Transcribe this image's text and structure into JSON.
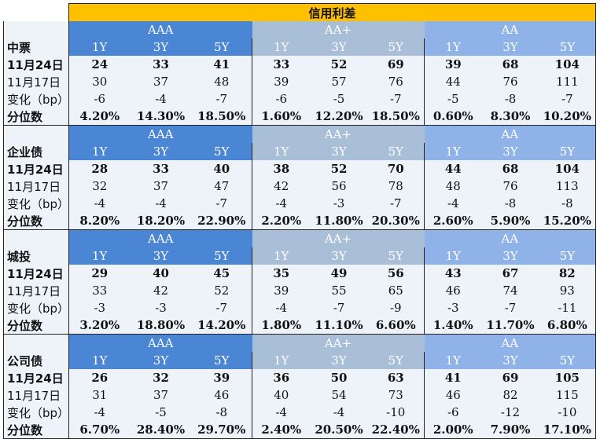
{
  "title": "信用利差",
  "tenors": [
    "1Y",
    "3Y",
    "5Y"
  ],
  "groups": [
    "AAA",
    "AA+",
    "AA"
  ],
  "row_labels": [
    "11月24日",
    "11月17日",
    "变化（bp）",
    "分位数"
  ],
  "colors": {
    "title_bg": "#ffc000",
    "aaa_bg": "#4a86d4",
    "aa_plus_bg": "#a9bfd8",
    "aa_bg": "#8fb3e8"
  },
  "sections": [
    {
      "name": "中票",
      "rows": [
        [
          "24",
          "33",
          "41",
          "33",
          "52",
          "69",
          "39",
          "68",
          "104"
        ],
        [
          "30",
          "37",
          "48",
          "39",
          "57",
          "76",
          "44",
          "76",
          "111"
        ],
        [
          "-6",
          "-4",
          "-7",
          "-6",
          "-5",
          "-7",
          "-5",
          "-8",
          "-7"
        ],
        [
          "4.20%",
          "14.30%",
          "18.50%",
          "1.60%",
          "12.20%",
          "18.50%",
          "0.60%",
          "8.30%",
          "10.20%"
        ]
      ]
    },
    {
      "name": "企业债",
      "rows": [
        [
          "28",
          "33",
          "40",
          "38",
          "52",
          "70",
          "44",
          "68",
          "104"
        ],
        [
          "32",
          "37",
          "47",
          "42",
          "56",
          "78",
          "48",
          "76",
          "113"
        ],
        [
          "-4",
          "-4",
          "-7",
          "-4",
          "-3",
          "-7",
          "-4",
          "-8",
          "-8"
        ],
        [
          "8.20%",
          "18.20%",
          "22.90%",
          "2.20%",
          "11.80%",
          "20.30%",
          "2.60%",
          "5.90%",
          "15.20%"
        ]
      ]
    },
    {
      "name": "城投",
      "rows": [
        [
          "29",
          "40",
          "45",
          "35",
          "49",
          "56",
          "43",
          "67",
          "82"
        ],
        [
          "33",
          "42",
          "52",
          "39",
          "55",
          "65",
          "46",
          "74",
          "93"
        ],
        [
          "-3",
          "-3",
          "-7",
          "-4",
          "-7",
          "-9",
          "-3",
          "-7",
          "-11"
        ],
        [
          "3.20%",
          "18.80%",
          "14.20%",
          "1.80%",
          "11.10%",
          "6.60%",
          "1.40%",
          "11.70%",
          "6.80%"
        ]
      ]
    },
    {
      "name": "公司债",
      "rows": [
        [
          "26",
          "32",
          "39",
          "36",
          "50",
          "63",
          "41",
          "69",
          "105"
        ],
        [
          "31",
          "37",
          "46",
          "40",
          "54",
          "73",
          "46",
          "82",
          "115"
        ],
        [
          "-4",
          "-5",
          "-8",
          "-4",
          "-4",
          "-10",
          "-6",
          "-12",
          "-10"
        ],
        [
          "6.70%",
          "28.40%",
          "29.70%",
          "2.40%",
          "20.50%",
          "22.40%",
          "2.00%",
          "7.90%",
          "17.10%"
        ]
      ]
    }
  ]
}
